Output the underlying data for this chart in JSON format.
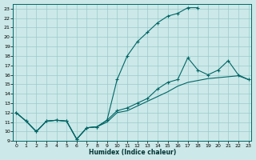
{
  "xlabel": "Humidex (Indice chaleur)",
  "bg_color": "#cce8e8",
  "grid_color": "#99cccc",
  "line_color": "#006666",
  "xlim": [
    -0.3,
    23.3
  ],
  "ylim": [
    9,
    23.5
  ],
  "xticks": [
    0,
    1,
    2,
    3,
    4,
    5,
    6,
    7,
    8,
    9,
    10,
    11,
    12,
    13,
    14,
    15,
    16,
    17,
    18,
    19,
    20,
    21,
    22,
    23
  ],
  "yticks": [
    9,
    10,
    11,
    12,
    13,
    14,
    15,
    16,
    17,
    18,
    19,
    20,
    21,
    22,
    23
  ],
  "line1_x": [
    0,
    1,
    2,
    3,
    4,
    5,
    6,
    7,
    8,
    9,
    10,
    11,
    12,
    13,
    14,
    15,
    16,
    17,
    18,
    19,
    20,
    21,
    22,
    23
  ],
  "line1_y": [
    12.0,
    11.1,
    10.0,
    11.1,
    11.2,
    11.1,
    9.2,
    10.4,
    10.5,
    11.0,
    12.0,
    12.2,
    12.7,
    13.2,
    13.7,
    14.2,
    14.8,
    15.2,
    15.4,
    15.6,
    15.7,
    15.8,
    15.9,
    15.5
  ],
  "line2_x": [
    0,
    1,
    2,
    3,
    4,
    5,
    6,
    7,
    8,
    9,
    10,
    11,
    12,
    13,
    14,
    15,
    16,
    17,
    18,
    19,
    20,
    21,
    22,
    23
  ],
  "line2_y": [
    12.0,
    11.1,
    10.0,
    11.1,
    11.2,
    11.1,
    9.2,
    10.4,
    10.5,
    11.2,
    12.2,
    12.5,
    13.0,
    13.5,
    14.5,
    15.2,
    15.5,
    17.8,
    16.5,
    16.0,
    16.5,
    17.5,
    16.0,
    15.5
  ],
  "line3_x": [
    0,
    1,
    2,
    3,
    4,
    5,
    6,
    7,
    8,
    9,
    10,
    11,
    12,
    13,
    14,
    15,
    16,
    17,
    18
  ],
  "line3_y": [
    12.0,
    11.1,
    10.0,
    11.1,
    11.2,
    11.1,
    9.2,
    10.4,
    10.5,
    11.2,
    15.5,
    18.0,
    19.5,
    20.5,
    21.5,
    22.2,
    22.5,
    23.1,
    23.1
  ]
}
